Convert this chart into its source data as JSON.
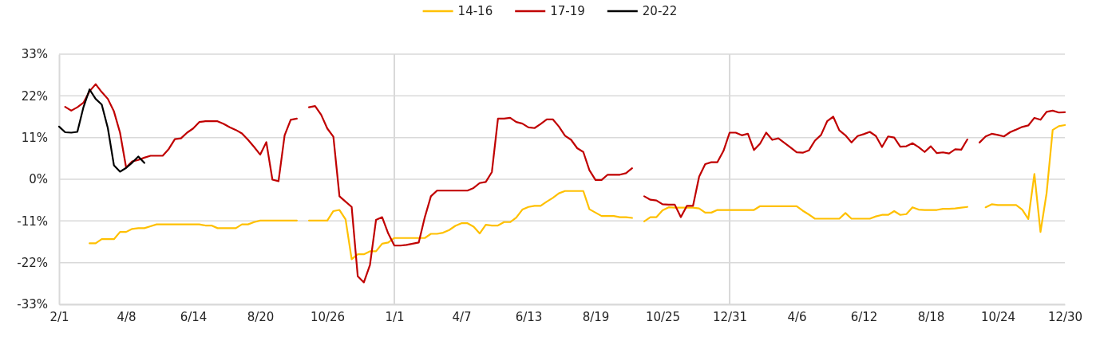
{
  "chart_data": {
    "type": "line",
    "ylim": [
      -33,
      33
    ],
    "categories": [
      "2/1",
      null,
      null,
      null,
      null,
      null,
      null,
      null,
      null,
      null,
      null,
      "4/8",
      null,
      null,
      null,
      null,
      null,
      null,
      null,
      null,
      null,
      null,
      "6/14",
      null,
      null,
      null,
      null,
      null,
      null,
      null,
      null,
      null,
      null,
      "8/20",
      null,
      null,
      null,
      null,
      null,
      null,
      null,
      null,
      null,
      null,
      "10/26",
      null,
      null,
      null,
      null,
      null,
      null,
      null,
      null,
      null,
      null,
      "1/1",
      null,
      null,
      null,
      null,
      null,
      null,
      null,
      null,
      null,
      null,
      "4/7",
      null,
      null,
      null,
      null,
      null,
      null,
      null,
      null,
      null,
      null,
      "6/13",
      null,
      null,
      null,
      null,
      null,
      null,
      null,
      null,
      null,
      null,
      "8/19",
      null,
      null,
      null,
      null,
      null,
      null,
      null,
      null,
      null,
      null,
      "10/25",
      null,
      null,
      null,
      null,
      null,
      null,
      null,
      null,
      null,
      null,
      "12/31",
      null,
      null,
      null,
      null,
      null,
      null,
      null,
      null,
      null,
      null,
      "4/6",
      null,
      null,
      null,
      null,
      null,
      null,
      null,
      null,
      null,
      null,
      "6/12",
      null,
      null,
      null,
      null,
      null,
      null,
      null,
      null,
      null,
      null,
      "8/18",
      null,
      null,
      null,
      null,
      null,
      null,
      null,
      null,
      null,
      null,
      "10/24",
      null,
      null,
      null,
      null,
      null,
      null,
      null,
      null,
      null,
      null,
      "12/30"
    ],
    "yticks": [
      {
        "value": -33,
        "label": "-33%"
      },
      {
        "value": -22,
        "label": "-22%"
      },
      {
        "value": -11,
        "label": "-11%"
      },
      {
        "value": 0,
        "label": "0%"
      },
      {
        "value": 11,
        "label": "11%"
      },
      {
        "value": 22,
        "label": "22%"
      },
      {
        "value": 33,
        "label": "33%"
      }
    ],
    "grid": "y",
    "legend": "top",
    "line_style": "solid",
    "marker": "none",
    "ref_lines": [
      {
        "axis": "x",
        "value": "1/1",
        "color": "#d9d9d9"
      },
      {
        "axis": "x",
        "value": "12/31",
        "color": "#d9d9d9"
      }
    ],
    "series": [
      {
        "name": "14-16",
        "color": "#ffc000",
        "values": [
          null,
          null,
          null,
          null,
          null,
          -16.9,
          -16.9,
          -15.8,
          -15.8,
          -15.8,
          -13.9,
          -13.9,
          -13.1,
          -12.9,
          -12.9,
          -12.4,
          -11.9,
          -11.9,
          -11.9,
          -11.9,
          -11.9,
          -11.9,
          -11.9,
          -11.9,
          -12.2,
          -12.2,
          -12.9,
          -12.9,
          -12.9,
          -12.9,
          -11.9,
          -11.9,
          -11.3,
          -10.9,
          -10.9,
          -10.9,
          -10.9,
          -10.9,
          -10.9,
          -10.9,
          null,
          -10.9,
          -10.9,
          -10.9,
          -10.9,
          -8.4,
          -8.1,
          -10.6,
          -21.1,
          -19.8,
          -19.8,
          -19.0,
          -19.0,
          -17.0,
          -16.7,
          -15.5,
          -15.5,
          -15.5,
          -15.5,
          -15.5,
          -15.5,
          -14.4,
          -14.4,
          -14.1,
          -13.4,
          -12.3,
          -11.6,
          -11.6,
          -12.5,
          -14.3,
          -12.0,
          -12.2,
          -12.2,
          -11.3,
          -11.3,
          -10.1,
          -8.0,
          -7.3,
          -7.0,
          -7.0,
          -5.9,
          -4.9,
          -3.7,
          -3.1,
          -3.1,
          -3.1,
          -3.1,
          -7.9,
          -8.8,
          -9.7,
          -9.7,
          -9.7,
          -10.0,
          -10.0,
          -10.2,
          null,
          -11.1,
          -10.0,
          -10.0,
          -8.2,
          -7.4,
          -7.5,
          -7.5,
          -7.5,
          -7.5,
          -7.7,
          -8.8,
          -8.8,
          -8.1,
          -8.1,
          -8.1,
          -8.1,
          -8.1,
          -8.1,
          -8.1,
          -7.1,
          -7.1,
          -7.1,
          -7.1,
          -7.1,
          -7.1,
          -7.1,
          -8.3,
          -9.3,
          -10.4,
          -10.4,
          -10.4,
          -10.4,
          -10.4,
          -8.9,
          -10.4,
          -10.4,
          -10.4,
          -10.4,
          -9.8,
          -9.4,
          -9.4,
          -8.4,
          -9.4,
          -9.2,
          -7.4,
          -8.0,
          -8.1,
          -8.1,
          -8.1,
          -7.8,
          -7.8,
          -7.7,
          -7.5,
          -7.3,
          null,
          null,
          -7.4,
          -6.6,
          -6.8,
          -6.8,
          -6.8,
          -6.8,
          -8.0,
          -10.5,
          1.4,
          -13.9,
          -3.7,
          13.0,
          14.0,
          14.3
        ]
      },
      {
        "name": "17-19",
        "color": "#c00000",
        "values": [
          null,
          19.1,
          18.1,
          19.0,
          20.2,
          23.2,
          25.1,
          23.0,
          21.2,
          17.9,
          12.3,
          3.1,
          4.7,
          5.1,
          5.7,
          6.2,
          6.2,
          6.2,
          8.0,
          10.6,
          10.8,
          12.3,
          13.4,
          15.1,
          15.3,
          15.3,
          15.3,
          14.6,
          13.7,
          13.0,
          12.1,
          10.4,
          8.5,
          6.5,
          9.8,
          -0.1,
          -0.5,
          11.6,
          15.7,
          16.0,
          null,
          19.0,
          19.3,
          17.0,
          13.4,
          11.2,
          -4.5,
          -5.9,
          -7.3,
          -25.6,
          -27.2,
          -22.6,
          -10.7,
          -10.0,
          -14.3,
          -17.5,
          -17.5,
          -17.3,
          -17.0,
          -16.7,
          -10.0,
          -4.5,
          -3.0,
          -3.0,
          -3.0,
          -3.0,
          -3.0,
          -3.0,
          -2.3,
          -1.0,
          -0.7,
          1.9,
          16.0,
          16.0,
          16.2,
          15.1,
          14.7,
          13.7,
          13.5,
          14.6,
          15.8,
          15.8,
          13.9,
          11.5,
          10.4,
          8.2,
          7.2,
          2.4,
          -0.2,
          -0.2,
          1.2,
          1.2,
          1.2,
          1.6,
          2.9,
          null,
          -4.5,
          -5.4,
          -5.6,
          -6.6,
          -6.7,
          -6.7,
          -10.0,
          -7.0,
          -7.0,
          0.7,
          4.0,
          4.5,
          4.5,
          7.5,
          12.3,
          12.3,
          11.6,
          12.0,
          7.7,
          9.4,
          12.3,
          10.4,
          10.8,
          9.6,
          8.4,
          7.1,
          7.0,
          7.6,
          10.2,
          11.7,
          15.3,
          16.5,
          12.9,
          11.6,
          9.7,
          11.4,
          11.9,
          12.5,
          11.4,
          8.5,
          11.3,
          11.0,
          8.6,
          8.7,
          9.5,
          8.5,
          7.2,
          8.7,
          6.9,
          7.1,
          6.8,
          7.9,
          7.8,
          10.5,
          null,
          9.7,
          11.3,
          12.0,
          11.7,
          11.3,
          12.4,
          13.1,
          13.8,
          14.2,
          16.2,
          15.7,
          17.8,
          18.1,
          17.6,
          17.7
        ]
      },
      {
        "name": "20-22",
        "color": "#000000",
        "values": [
          13.9,
          12.4,
          12.3,
          12.5,
          19.0,
          23.7,
          21.2,
          19.7,
          13.5,
          3.7,
          2.0,
          3.0,
          4.4,
          6.0,
          4.3,
          null,
          null,
          null,
          null,
          null,
          null,
          null,
          null,
          null,
          null,
          null,
          null,
          null,
          null,
          null,
          null,
          null,
          null,
          null,
          null,
          null,
          null,
          null,
          null,
          null,
          null,
          null,
          null,
          null,
          null,
          null,
          null,
          null,
          null,
          null,
          null,
          null,
          null,
          null,
          null,
          null,
          null,
          null,
          null,
          null,
          null,
          null,
          null,
          null,
          null,
          null,
          null,
          null,
          null,
          null,
          null,
          null,
          null,
          null,
          null,
          null,
          null,
          null,
          null,
          null,
          null,
          null,
          null,
          null,
          null,
          null,
          null,
          null,
          null,
          null,
          null,
          null,
          null,
          null,
          null,
          null,
          null,
          null,
          null,
          null,
          null,
          null,
          null,
          null,
          null,
          null,
          null,
          null,
          null,
          null,
          null,
          null,
          null,
          null,
          null,
          null,
          null,
          null,
          null,
          null,
          null,
          null,
          null,
          null,
          null,
          null,
          null,
          null,
          null,
          null,
          null,
          null,
          null,
          null,
          null,
          null,
          null,
          null,
          null,
          null,
          null,
          null,
          null,
          null,
          null,
          null,
          null,
          null,
          null,
          null,
          null,
          null,
          null,
          null,
          null,
          null,
          null,
          null,
          null,
          null,
          null,
          null,
          null,
          null,
          null,
          null
        ]
      }
    ]
  }
}
